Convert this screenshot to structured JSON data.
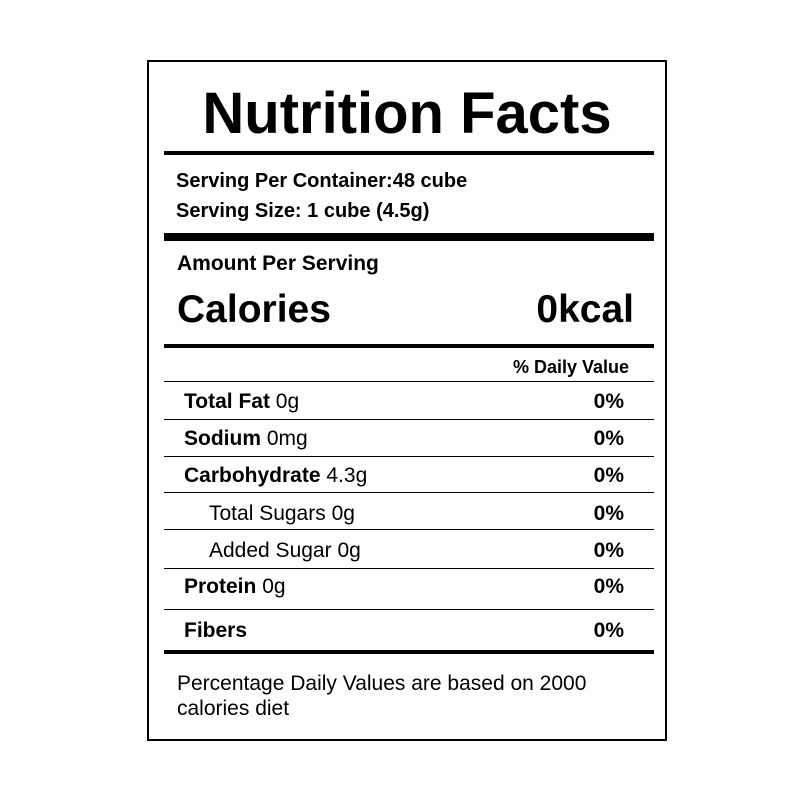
{
  "label": {
    "title": "Nutrition Facts",
    "servings_per_container": "Serving Per Container:48 cube",
    "serving_size": "Serving Size: 1 cube (4.5g)",
    "amount_per_serving": "Amount Per Serving",
    "calories_label": "Calories",
    "calories_value": "0kcal",
    "daily_value_header": "% Daily Value",
    "rows": [
      {
        "name": "Total Fat",
        "amount": "0g",
        "percent": "0%"
      },
      {
        "name": "Sodium",
        "amount": "0mg",
        "percent": "0%"
      },
      {
        "name": "Carbohydrate",
        "amount": "4.3g",
        "percent": "0%"
      },
      {
        "name": "Total Sugars",
        "amount": "0g",
        "percent": "0%"
      },
      {
        "name": "Added Sugar",
        "amount": "0g",
        "percent": "0%"
      },
      {
        "name": "Protein",
        "amount": "0g",
        "percent": "0%"
      },
      {
        "name": "Fibers",
        "percent": "0%"
      }
    ],
    "footnote": "Percentage Daily Values are based on 2000 calories diet"
  }
}
